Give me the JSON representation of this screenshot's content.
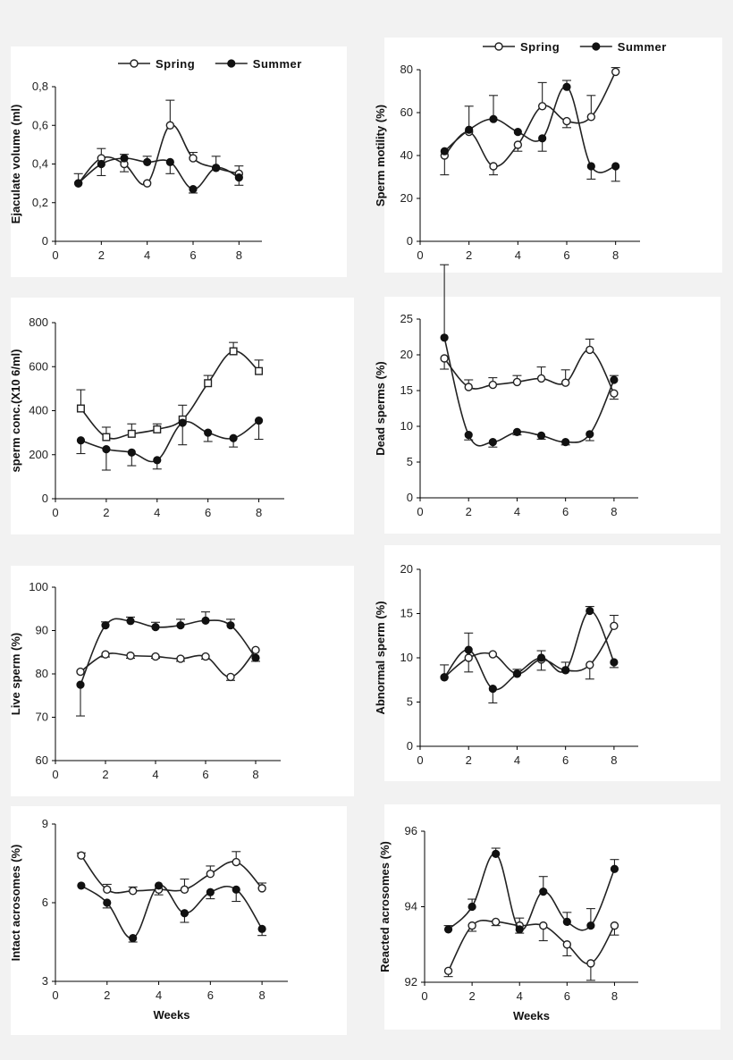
{
  "legend": [
    {
      "label": "Spring",
      "marker": "open-circle"
    },
    {
      "label": "Summer",
      "marker": "filled-circle"
    }
  ],
  "colors": {
    "background": "#f2f2f2",
    "panel": "#ffffff",
    "ink": "#222222"
  },
  "chart_data": [
    {
      "type": "line",
      "ylabel": "Ejaculate volume (ml)",
      "xlabel": "",
      "xlim": [
        0,
        9
      ],
      "xticks": [
        0,
        2,
        4,
        6,
        8
      ],
      "xtick_labels": [
        "0",
        "2",
        "4",
        "6",
        "8"
      ],
      "ylim": [
        0,
        0.8
      ],
      "yticks": [
        0,
        0.2,
        0.4,
        0.6,
        0.8
      ],
      "ytick_labels": [
        "0",
        "0,2",
        "0,4",
        "0,6",
        "0,8"
      ],
      "legend_labels": [
        "Spring",
        "Summer"
      ],
      "series": [
        {
          "name": "Spring",
          "marker": "open-circle",
          "x": [
            1,
            2,
            3,
            4,
            5,
            6,
            7,
            8
          ],
          "y": [
            0.3,
            0.43,
            0.4,
            0.3,
            0.6,
            0.43,
            0.38,
            0.35
          ],
          "err": [
            0,
            0.05,
            0.04,
            0,
            0.13,
            0.03,
            0,
            0.04
          ]
        },
        {
          "name": "Summer",
          "marker": "filled-circle",
          "x": [
            1,
            2,
            3,
            4,
            5,
            6,
            7,
            8
          ],
          "y": [
            0.3,
            0.4,
            0.43,
            0.41,
            0.41,
            0.27,
            0.38,
            0.33
          ],
          "err": [
            0.05,
            0.06,
            0.02,
            0.03,
            0.06,
            0.02,
            0.06,
            0.04
          ]
        }
      ]
    },
    {
      "type": "line",
      "ylabel": "Sperm motility (%)",
      "xlabel": "",
      "xlim": [
        0,
        9
      ],
      "xticks": [
        0,
        2,
        4,
        6,
        8
      ],
      "xtick_labels": [
        "0",
        "2",
        "4",
        "6",
        "8"
      ],
      "ylim": [
        0,
        80
      ],
      "yticks": [
        0,
        20,
        40,
        60,
        80
      ],
      "ytick_labels": [
        "0",
        "20",
        "40",
        "60",
        "80"
      ],
      "legend_labels": [
        "Spring",
        "Summer"
      ],
      "series": [
        {
          "name": "Spring",
          "marker": "open-circle",
          "x": [
            1,
            2,
            3,
            4,
            5,
            6,
            7,
            8
          ],
          "y": [
            40,
            51,
            35,
            45,
            63,
            56,
            58,
            79
          ],
          "err": [
            9,
            0,
            4,
            3,
            11,
            3,
            10,
            2
          ]
        },
        {
          "name": "Summer",
          "marker": "filled-circle",
          "x": [
            1,
            2,
            3,
            4,
            5,
            6,
            7,
            8
          ],
          "y": [
            42,
            52,
            57,
            51,
            48,
            72,
            35,
            35
          ],
          "err": [
            0,
            11,
            11,
            0,
            6,
            3,
            6,
            7
          ]
        }
      ]
    },
    {
      "type": "line",
      "ylabel": "sperm conc.(X10 6/ml)",
      "xlabel": "",
      "xlim": [
        0,
        9
      ],
      "xticks": [
        0,
        2,
        4,
        6,
        8
      ],
      "xtick_labels": [
        "0",
        "2",
        "4",
        "6",
        "8"
      ],
      "ylim": [
        0,
        800
      ],
      "yticks": [
        0,
        200,
        400,
        600,
        800
      ],
      "ytick_labels": [
        "0",
        "200",
        "400",
        "600",
        "800"
      ],
      "series": [
        {
          "name": "Spring",
          "marker": "open-square",
          "x": [
            1,
            2,
            3,
            4,
            5,
            6,
            7,
            8
          ],
          "y": [
            410,
            280,
            295,
            315,
            360,
            525,
            670,
            580
          ],
          "err": [
            85,
            45,
            45,
            25,
            65,
            35,
            40,
            50
          ]
        },
        {
          "name": "Summer",
          "marker": "filled-circle",
          "x": [
            1,
            2,
            3,
            4,
            5,
            6,
            7,
            8
          ],
          "y": [
            265,
            225,
            210,
            175,
            345,
            300,
            275,
            355
          ],
          "err": [
            60,
            95,
            60,
            40,
            100,
            40,
            40,
            85
          ]
        }
      ]
    },
    {
      "type": "line",
      "ylabel": "Dead sperms (%)",
      "xlabel": "",
      "xlim": [
        0,
        9
      ],
      "xticks": [
        0,
        2,
        4,
        6,
        8
      ],
      "xtick_labels": [
        "0",
        "2",
        "4",
        "6",
        "8"
      ],
      "ylim": [
        0,
        25
      ],
      "yticks": [
        0,
        5,
        10,
        15,
        20,
        25
      ],
      "ytick_labels": [
        "0",
        "5",
        "10",
        "15",
        "20",
        "25"
      ],
      "series": [
        {
          "name": "Spring",
          "marker": "open-circle",
          "x": [
            1,
            2,
            3,
            4,
            5,
            6,
            7,
            8
          ],
          "y": [
            19.5,
            15.5,
            15.8,
            16.2,
            16.7,
            16.1,
            20.7,
            14.6
          ],
          "err": [
            1.5,
            1.0,
            1.0,
            0.9,
            1.6,
            1.8,
            1.5,
            0.8
          ]
        },
        {
          "name": "Summer",
          "marker": "filled-circle",
          "x": [
            1,
            2,
            3,
            4,
            5,
            6,
            7,
            8
          ],
          "y": [
            22.4,
            8.8,
            7.8,
            9.2,
            8.7,
            7.8,
            8.9,
            16.5
          ],
          "err": [
            10.2,
            0.7,
            0.7,
            0.4,
            0.5,
            0.4,
            0.9,
            0.6
          ]
        }
      ]
    },
    {
      "type": "line",
      "ylabel": "Live sperm (%)",
      "xlabel": "",
      "xlim": [
        0,
        9
      ],
      "xticks": [
        0,
        2,
        4,
        6,
        8
      ],
      "xtick_labels": [
        "0",
        "2",
        "4",
        "6",
        "8"
      ],
      "ylim": [
        60,
        100
      ],
      "yticks": [
        60,
        70,
        80,
        90,
        100
      ],
      "ytick_labels": [
        "60",
        "70",
        "80",
        "90",
        "100"
      ],
      "series": [
        {
          "name": "Spring",
          "marker": "open-circle",
          "x": [
            1,
            2,
            3,
            4,
            5,
            6,
            7,
            8
          ],
          "y": [
            80.5,
            84.5,
            84.2,
            84.0,
            83.5,
            84.0,
            79.3,
            85.5
          ],
          "err": [
            0,
            0.6,
            0.6,
            0.4,
            0.6,
            0.6,
            0.8,
            0
          ]
        },
        {
          "name": "Summer",
          "marker": "filled-circle",
          "x": [
            1,
            2,
            3,
            4,
            5,
            6,
            7,
            8
          ],
          "y": [
            77.5,
            91.2,
            92.2,
            90.8,
            91.2,
            92.3,
            91.2,
            83.7
          ],
          "err": [
            7.2,
            0.8,
            0.9,
            1.1,
            1.4,
            2.0,
            1.4,
            0.8
          ]
        }
      ]
    },
    {
      "type": "line",
      "ylabel": "Abnormal sperm (%)",
      "xlabel": "",
      "xlim": [
        0,
        9
      ],
      "xticks": [
        0,
        2,
        4,
        6,
        8
      ],
      "xtick_labels": [
        "0",
        "2",
        "4",
        "6",
        "8"
      ],
      "ylim": [
        0,
        20
      ],
      "yticks": [
        0,
        5,
        10,
        15,
        20
      ],
      "ytick_labels": [
        "0",
        "5",
        "10",
        "15",
        "20"
      ],
      "series": [
        {
          "name": "Spring",
          "marker": "open-circle",
          "x": [
            1,
            2,
            3,
            4,
            5,
            6,
            7,
            8
          ],
          "y": [
            7.8,
            10.0,
            10.4,
            8.2,
            9.8,
            8.6,
            9.2,
            13.6
          ],
          "err": [
            0,
            1.6,
            0,
            0,
            1.2,
            0,
            1.6,
            1.2
          ]
        },
        {
          "name": "Summer",
          "marker": "filled-circle",
          "x": [
            1,
            2,
            3,
            4,
            5,
            6,
            7,
            8
          ],
          "y": [
            7.8,
            10.9,
            6.5,
            8.2,
            10.0,
            8.6,
            15.3,
            9.5
          ],
          "err": [
            1.4,
            1.9,
            1.6,
            0.5,
            0.8,
            0.9,
            0.5,
            0.6
          ]
        }
      ]
    },
    {
      "type": "line",
      "ylabel": "Intact acrosomes (%)",
      "xlabel": "Weeks",
      "xlim": [
        0,
        9
      ],
      "xticks": [
        0,
        2,
        4,
        6,
        8
      ],
      "xtick_labels": [
        "0",
        "2",
        "4",
        "6",
        "8"
      ],
      "ylim": [
        3,
        9
      ],
      "yticks": [
        3,
        6,
        9
      ],
      "ytick_labels": [
        "3",
        "6",
        "9"
      ],
      "series": [
        {
          "name": "Spring",
          "marker": "open-circle",
          "x": [
            1,
            2,
            3,
            4,
            5,
            6,
            7,
            8
          ],
          "y": [
            7.8,
            6.5,
            6.45,
            6.5,
            6.5,
            7.1,
            7.55,
            6.55
          ],
          "err": [
            0.1,
            0.2,
            0.15,
            0.2,
            0.4,
            0.3,
            0.4,
            0.2
          ]
        },
        {
          "name": "Summer",
          "marker": "filled-circle",
          "x": [
            1,
            2,
            3,
            4,
            5,
            6,
            7,
            8
          ],
          "y": [
            6.65,
            6.0,
            4.65,
            6.65,
            5.6,
            6.4,
            6.5,
            5.0
          ],
          "err": [
            0,
            0.2,
            0.15,
            0,
            0.35,
            0.25,
            0.45,
            0.25
          ]
        }
      ]
    },
    {
      "type": "line",
      "ylabel": "Reacted acrosomes (%)",
      "xlabel": "Weeks",
      "xlim": [
        0,
        9
      ],
      "xticks": [
        0,
        2,
        4,
        6,
        8
      ],
      "xtick_labels": [
        "0",
        "2",
        "4",
        "6",
        "8"
      ],
      "ylim": [
        92,
        96
      ],
      "yticks": [
        92,
        94,
        96
      ],
      "ytick_labels": [
        "92",
        "94",
        "96"
      ],
      "series": [
        {
          "name": "Spring",
          "marker": "open-circle",
          "x": [
            1,
            2,
            3,
            4,
            5,
            6,
            7,
            8
          ],
          "y": [
            92.3,
            93.5,
            93.6,
            93.5,
            93.5,
            93.0,
            92.5,
            93.5
          ],
          "err": [
            0.15,
            0.15,
            0.1,
            0.2,
            0.4,
            0.3,
            0.45,
            0.25
          ]
        },
        {
          "name": "Summer",
          "marker": "filled-circle",
          "x": [
            1,
            2,
            3,
            4,
            5,
            6,
            7,
            8
          ],
          "y": [
            93.4,
            94.0,
            95.4,
            93.4,
            94.4,
            93.6,
            93.5,
            95.0
          ],
          "err": [
            0.1,
            0.2,
            0.15,
            0.1,
            0.4,
            0.25,
            0.45,
            0.25
          ]
        }
      ]
    }
  ]
}
